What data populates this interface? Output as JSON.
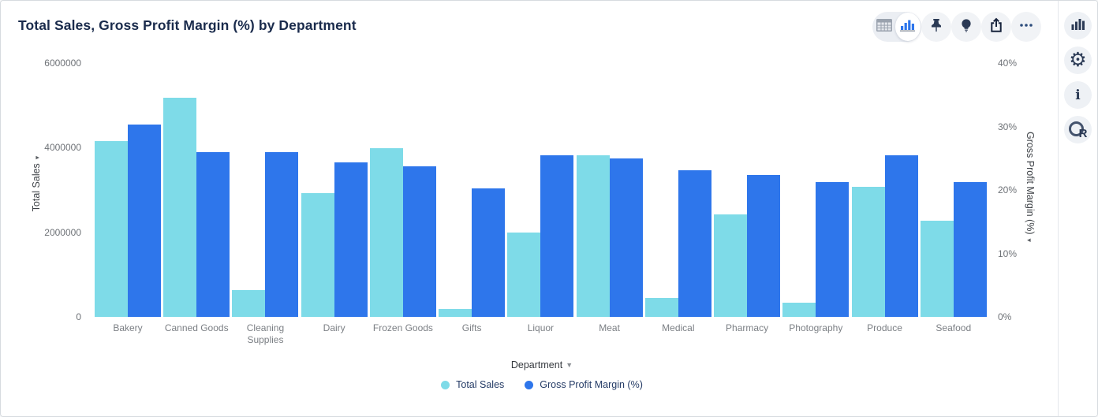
{
  "header": {
    "title": "Total Sales, Gross Profit Margin (%) by Department",
    "toolbar": {
      "view_toggle": {
        "options": [
          {
            "name": "table-view",
            "icon": "table-icon",
            "selected": false
          },
          {
            "name": "chart-view",
            "icon": "bar-chart-icon",
            "selected": true
          }
        ]
      },
      "buttons": [
        {
          "name": "pin",
          "icon": "pin-icon"
        },
        {
          "name": "insights",
          "icon": "lightbulb-icon"
        },
        {
          "name": "export",
          "icon": "share-icon"
        },
        {
          "name": "more-options",
          "icon": "ellipsis-icon"
        }
      ]
    }
  },
  "side_rail": {
    "buttons": [
      {
        "name": "chart-type",
        "icon": "bar-chart-icon"
      },
      {
        "name": "settings",
        "icon": "gear-icon"
      },
      {
        "name": "info",
        "icon": "info-icon"
      },
      {
        "name": "r-script",
        "icon": "r-logo-icon"
      }
    ]
  },
  "colors": {
    "total_sales_bar": "#7edbe8",
    "gross_profit_bar": "#2e76eb",
    "title_text": "#1a2b4c",
    "icon_navy": "#2b3a55",
    "tick_text": "#6e7277"
  },
  "chart_data": {
    "type": "bar",
    "title": "Total Sales, Gross Profit Margin (%) by Department",
    "categories": [
      "Bakery",
      "Canned Goods",
      "Cleaning Supplies",
      "Dairy",
      "Frozen Goods",
      "Gifts",
      "Liquor",
      "Meat",
      "Medical",
      "Pharmacy",
      "Photography",
      "Produce",
      "Seafood"
    ],
    "series": [
      {
        "name": "Total Sales",
        "axis": "left",
        "color": "#7edbe8",
        "values": [
          4160000,
          5180000,
          630000,
          2930000,
          3990000,
          190000,
          1990000,
          3820000,
          440000,
          2430000,
          340000,
          3070000,
          2270000
        ]
      },
      {
        "name": "Gross Profit Margin (%)",
        "axis": "right",
        "color": "#2e76eb",
        "values": [
          30.3,
          26,
          26,
          24.3,
          23.7,
          20.3,
          25.5,
          25,
          23.1,
          22.4,
          21.3,
          25.5,
          21.2
        ]
      }
    ],
    "left_axis": {
      "label": "Total Sales",
      "ticks": [
        "0",
        "2000000",
        "4000000",
        "6000000"
      ],
      "max": 6000000
    },
    "right_axis": {
      "label": "Gross Profit Margin (%)",
      "ticks": [
        "0%",
        "10%",
        "20%",
        "30%",
        "40%"
      ],
      "max": 40
    },
    "xlabel": "Department",
    "legend_position": "bottom",
    "grid": false
  }
}
